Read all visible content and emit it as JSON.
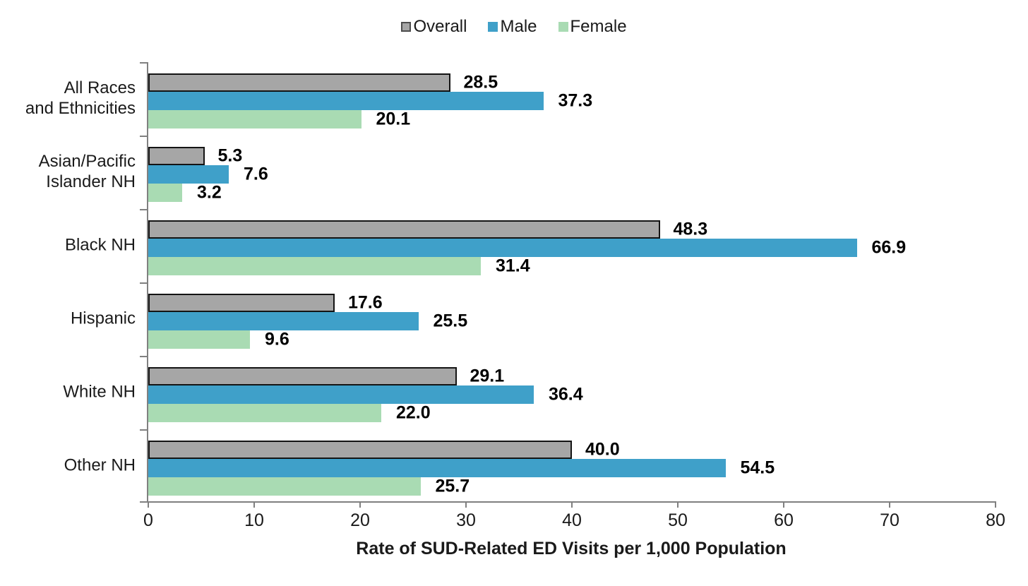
{
  "chart_data": {
    "type": "bar",
    "orientation": "horizontal",
    "title": "",
    "xlabel": "Rate of SUD-Related ED Visits per 1,000 Population",
    "ylabel": "",
    "xlim": [
      0,
      80
    ],
    "xticks": [
      0,
      10,
      20,
      30,
      40,
      50,
      60,
      70,
      80
    ],
    "grid": false,
    "legend_position": "top-center",
    "value_label_decimals": 1,
    "axis_color": "#808080",
    "categories": [
      "All Races\nand Ethnicities",
      "Asian/Pacific\nIslander NH",
      "Black NH",
      "Hispanic",
      "White NH",
      "Other NH"
    ],
    "series": [
      {
        "name": "Overall",
        "color": "#A6A6A6",
        "border_color": "#141414",
        "values": [
          28.5,
          5.3,
          48.3,
          17.6,
          29.1,
          40.0
        ]
      },
      {
        "name": "Male",
        "color": "#3FA0C9",
        "values": [
          37.3,
          7.6,
          66.9,
          25.5,
          36.4,
          54.5
        ]
      },
      {
        "name": "Female",
        "color": "#A9DBB3",
        "values": [
          20.1,
          3.2,
          31.4,
          9.6,
          22.0,
          25.7
        ]
      }
    ]
  }
}
